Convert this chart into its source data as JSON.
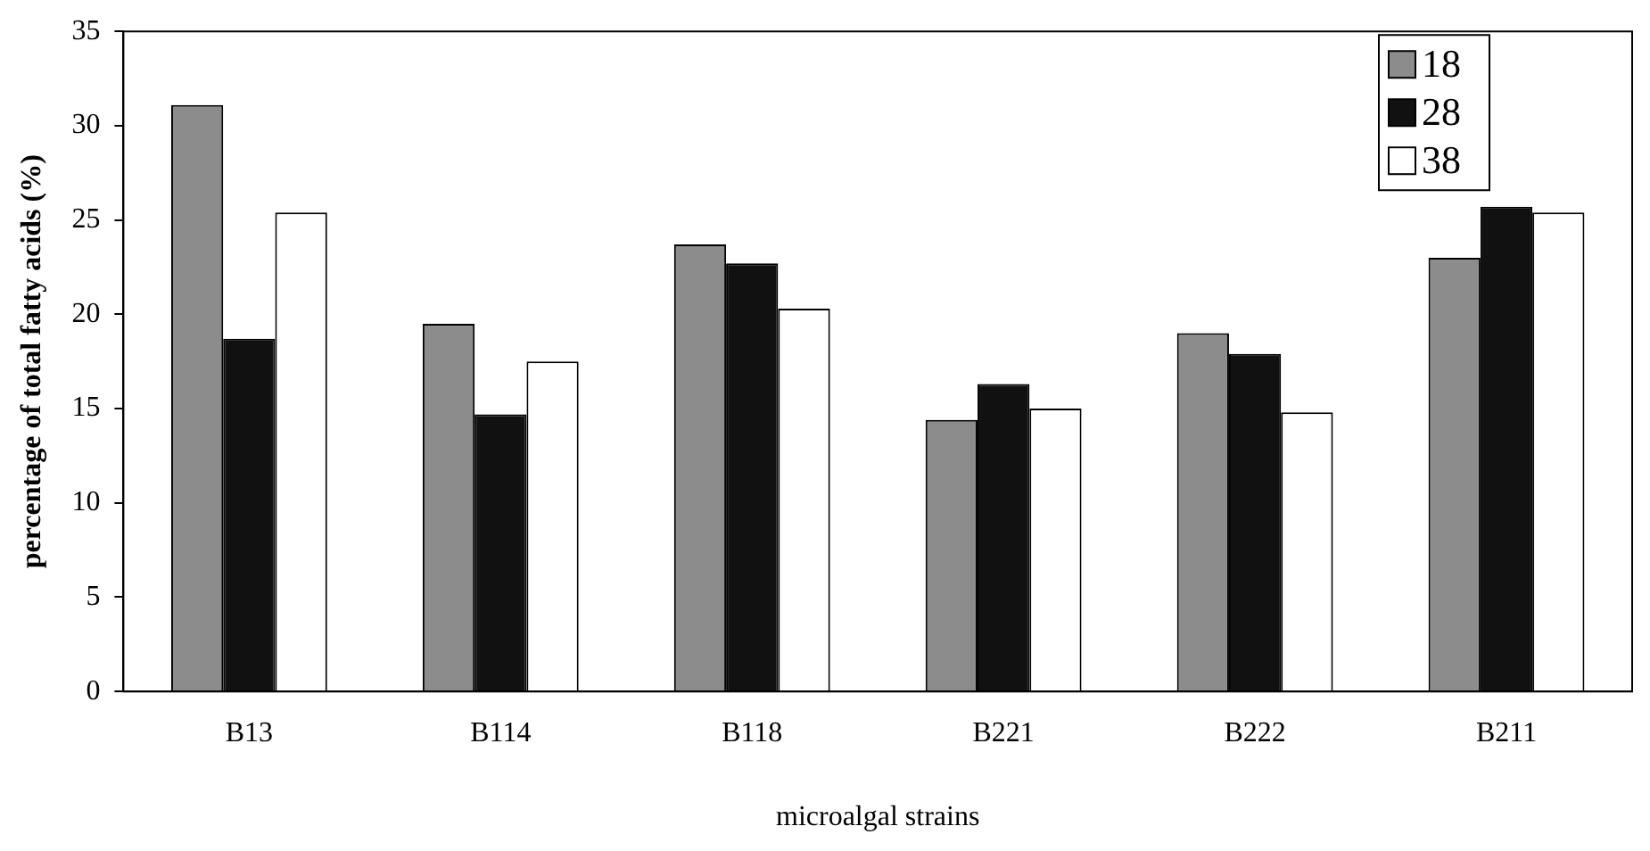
{
  "chart_data": {
    "type": "bar",
    "xlabel": "microalgal strains",
    "ylabel": "percentage of total fatty acids (%)",
    "categories": [
      "B13",
      "B114",
      "B118",
      "B221",
      "B222",
      "B211"
    ],
    "series": [
      {
        "name": "18",
        "color": "#8c8c8c",
        "values": [
          31.1,
          19.5,
          23.7,
          14.4,
          19,
          23
        ]
      },
      {
        "name": "28",
        "color": "#111111",
        "values": [
          18.7,
          14.7,
          22.7,
          16.3,
          17.9,
          25.7
        ]
      },
      {
        "name": "38",
        "color": "#ffffff",
        "values": [
          25.4,
          17.5,
          20.3,
          15,
          14.8,
          25.4
        ]
      }
    ],
    "ylim": [
      0,
      35
    ],
    "yticks": [
      0,
      5,
      10,
      15,
      20,
      25,
      30,
      35
    ],
    "grid": false,
    "legend": "top right"
  }
}
